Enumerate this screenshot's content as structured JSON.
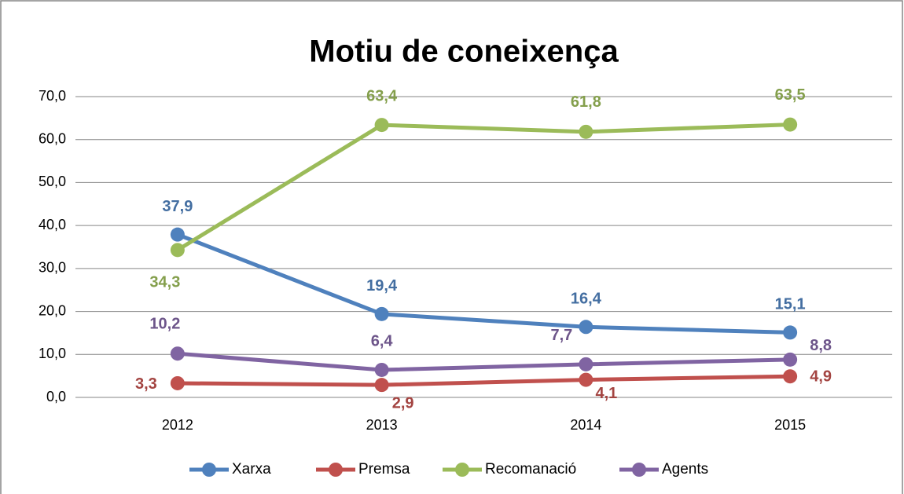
{
  "chart_data": {
    "type": "line",
    "title": "Motiu de coneixença",
    "categories": [
      "2012",
      "2013",
      "2014",
      "2015"
    ],
    "series": [
      {
        "name": "Xarxa",
        "color": "#4f81bd",
        "values": [
          37.9,
          19.4,
          16.4,
          15.1
        ],
        "value_labels": [
          "37,9",
          "19,4",
          "16,4",
          "15,1"
        ]
      },
      {
        "name": "Premsa",
        "color": "#c0504d",
        "values": [
          3.3,
          2.9,
          4.1,
          4.9
        ],
        "value_labels": [
          "3,3",
          "2,9",
          "4,1",
          "4,9"
        ]
      },
      {
        "name": "Recomanació",
        "color": "#9bbb59",
        "values": [
          34.3,
          63.4,
          61.8,
          63.5
        ],
        "value_labels": [
          "34,3",
          "63,4",
          "61,8",
          "63,5"
        ]
      },
      {
        "name": "Agents",
        "color": "#8064a2",
        "values": [
          10.2,
          6.4,
          7.7,
          8.8
        ],
        "value_labels": [
          "10,2",
          "6,4",
          "7,7",
          "8,8"
        ]
      }
    ],
    "ylim": [
      0,
      70
    ],
    "yticks": [
      {
        "value": 0,
        "label": "0,0"
      },
      {
        "value": 10,
        "label": "10,0"
      },
      {
        "value": 20,
        "label": "20,0"
      },
      {
        "value": 30,
        "label": "30,0"
      },
      {
        "value": 40,
        "label": "40,0"
      },
      {
        "value": 50,
        "label": "50,0"
      },
      {
        "value": 60,
        "label": "60,0"
      },
      {
        "value": 70,
        "label": "70,0"
      }
    ],
    "grid": true,
    "legend": "bottom"
  }
}
